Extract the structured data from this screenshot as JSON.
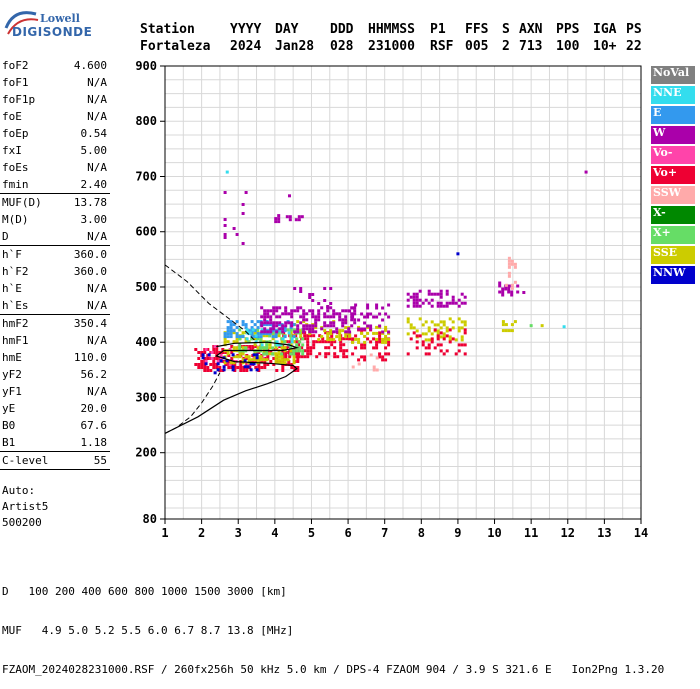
{
  "logo": {
    "line1": "Lowell",
    "line2": "DIGISONDE"
  },
  "header": {
    "row1": [
      "Station",
      "YYYY",
      "DAY",
      "DDD",
      "HHMMSS",
      "P1",
      "FFS",
      "S",
      "AXN",
      "PPS",
      "IGA",
      "PS"
    ],
    "row2": [
      "Fortaleza",
      "2024",
      "Jan28",
      "028",
      "231000",
      "RSF",
      "005",
      "2",
      "713",
      "100",
      "10+",
      "22"
    ]
  },
  "params": {
    "g1": [
      {
        "k": "foF2",
        "v": "4.600"
      },
      {
        "k": "foF1",
        "v": "N/A"
      },
      {
        "k": "foF1p",
        "v": "N/A"
      },
      {
        "k": "foE",
        "v": "N/A"
      },
      {
        "k": "foEp",
        "v": "0.54"
      },
      {
        "k": "fxI",
        "v": "5.00"
      },
      {
        "k": "foEs",
        "v": "N/A"
      },
      {
        "k": "fmin",
        "v": "2.40"
      }
    ],
    "g2": [
      {
        "k": "MUF(D)",
        "v": "13.78"
      },
      {
        "k": "M(D)",
        "v": "3.00"
      },
      {
        "k": "D",
        "v": "N/A"
      }
    ],
    "g3": [
      {
        "k": "h`F",
        "v": "360.0"
      },
      {
        "k": "h`F2",
        "v": "360.0"
      },
      {
        "k": "h`E",
        "v": "N/A"
      },
      {
        "k": "h`Es",
        "v": "N/A"
      }
    ],
    "g4": [
      {
        "k": "hmF2",
        "v": "350.4"
      },
      {
        "k": "hmF1",
        "v": "N/A"
      },
      {
        "k": "hmE",
        "v": "110.0"
      },
      {
        "k": "yF2",
        "v": "56.2"
      },
      {
        "k": "yF1",
        "v": "N/A"
      },
      {
        "k": "yE",
        "v": "20.0"
      },
      {
        "k": "B0",
        "v": "67.6"
      },
      {
        "k": "B1",
        "v": "1.18"
      }
    ],
    "g5": [
      {
        "k": "C-level",
        "v": "55"
      }
    ]
  },
  "auto": {
    "line1": "Auto:",
    "line2": "Artist5",
    "line3": "500200"
  },
  "legend": [
    {
      "label": "NoVal",
      "color": "#808080"
    },
    {
      "label": "NNE",
      "color": "#33ddee"
    },
    {
      "label": "E",
      "color": "#3399ee"
    },
    {
      "label": "W",
      "color": "#aa00aa"
    },
    {
      "label": "Vo-",
      "color": "#ff44aa"
    },
    {
      "label": "Vo+",
      "color": "#ee0033"
    },
    {
      "label": "SSW",
      "color": "#ffaaaa"
    },
    {
      "label": "X-",
      "color": "#008800"
    },
    {
      "label": "X+",
      "color": "#66dd66"
    },
    {
      "label": "SSE",
      "color": "#cccc00"
    },
    {
      "label": "NNW",
      "color": "#0000cc"
    }
  ],
  "footer": {
    "d_label": "D",
    "d_values": "100 200 400 600 800 1000 1500 3000 [km]",
    "muf_label": "MUF",
    "muf_values": "4.9 5.0 5.2 5.5 6.0 6.7 8.7 13.8 [MHz]",
    "file_line": "FZAOM_2024028231000.RSF / 260fx256h 50 kHz 5.0 km / DPS-4 FZAOM 904 / 3.9 S 321.6 E   Ion2Png 1.3.20"
  },
  "chart_data": {
    "type": "scatter",
    "xlim": [
      1,
      14
    ],
    "ylim": [
      80,
      900
    ],
    "x_ticks": [
      1,
      2,
      3,
      4,
      5,
      6,
      7,
      8,
      9,
      10,
      11,
      12,
      13,
      14
    ],
    "y_ticks": [
      80,
      200,
      300,
      400,
      500,
      600,
      700,
      800,
      900
    ],
    "grid": true,
    "clusters": [
      {
        "mode": "Vo+",
        "x": [
          1.8,
          4.6
        ],
        "y": [
          350,
          395
        ],
        "density": 0.55
      },
      {
        "mode": "Vo+",
        "x": [
          4.2,
          6.0
        ],
        "y": [
          375,
          420
        ],
        "density": 0.45
      },
      {
        "mode": "Vo-",
        "x": [
          2.0,
          3.8
        ],
        "y": [
          360,
          395
        ],
        "density": 0.2
      },
      {
        "mode": "SSE",
        "x": [
          2.6,
          4.5
        ],
        "y": [
          365,
          420
        ],
        "density": 0.45
      },
      {
        "mode": "SSE",
        "x": [
          4.5,
          6.0
        ],
        "y": [
          405,
          440
        ],
        "density": 0.35
      },
      {
        "mode": "X+",
        "x": [
          3.0,
          4.8
        ],
        "y": [
          380,
          425
        ],
        "density": 0.3
      },
      {
        "mode": "E",
        "x": [
          2.6,
          4.5
        ],
        "y": [
          410,
          440
        ],
        "density": 0.5
      },
      {
        "mode": "NNE",
        "x": [
          3.2,
          4.5
        ],
        "y": [
          395,
          425
        ],
        "density": 0.25
      },
      {
        "mode": "W",
        "x": [
          3.6,
          6.2
        ],
        "y": [
          420,
          465
        ],
        "density": 0.45
      },
      {
        "mode": "W",
        "x": [
          4.5,
          5.6
        ],
        "y": [
          465,
          500
        ],
        "density": 0.2
      },
      {
        "mode": "NNW",
        "x": [
          2.0,
          3.5
        ],
        "y": [
          345,
          380
        ],
        "density": 0.15
      },
      {
        "mode": "Vo+",
        "x": [
          6.0,
          7.1
        ],
        "y": [
          370,
          425
        ],
        "density": 0.3
      },
      {
        "mode": "SSE",
        "x": [
          6.0,
          7.1
        ],
        "y": [
          400,
          435
        ],
        "density": 0.25
      },
      {
        "mode": "W",
        "x": [
          6.0,
          7.1
        ],
        "y": [
          420,
          470
        ],
        "density": 0.25
      },
      {
        "mode": "SSW",
        "x": [
          6.1,
          6.8
        ],
        "y": [
          350,
          385
        ],
        "density": 0.2
      },
      {
        "mode": "W",
        "x": [
          7.6,
          9.2
        ],
        "y": [
          465,
          495
        ],
        "density": 0.45
      },
      {
        "mode": "SSE",
        "x": [
          7.6,
          9.2
        ],
        "y": [
          405,
          445
        ],
        "density": 0.35
      },
      {
        "mode": "Vo+",
        "x": [
          7.6,
          9.2
        ],
        "y": [
          380,
          425
        ],
        "density": 0.25
      },
      {
        "mode": "W",
        "x": [
          10.1,
          10.6
        ],
        "y": [
          485,
          510
        ],
        "density": 0.45
      },
      {
        "mode": "SSW",
        "x": [
          10.2,
          10.6
        ],
        "y": [
          500,
          560
        ],
        "density": 0.3
      },
      {
        "mode": "SSE",
        "x": [
          10.2,
          10.6
        ],
        "y": [
          420,
          440
        ],
        "density": 0.3
      },
      {
        "mode": "W",
        "x": [
          2.6,
          3.2
        ],
        "y": [
          580,
          690
        ],
        "density": 0.08
      },
      {
        "mode": "W",
        "x": [
          3.9,
          4.1
        ],
        "y": [
          618,
          632
        ],
        "density": 0.6
      },
      {
        "mode": "W",
        "x": [
          4.3,
          4.8
        ],
        "y": [
          620,
          630
        ],
        "density": 0.4
      }
    ],
    "points": [
      {
        "mode": "NNE",
        "x": 2.7,
        "y": 708
      },
      {
        "mode": "W",
        "x": 12.5,
        "y": 708
      },
      {
        "mode": "W",
        "x": 4.4,
        "y": 665
      },
      {
        "mode": "X+",
        "x": 11.0,
        "y": 430
      },
      {
        "mode": "SSE",
        "x": 11.3,
        "y": 430
      },
      {
        "mode": "NNE",
        "x": 11.9,
        "y": 428
      },
      {
        "mode": "NNW",
        "x": 9.0,
        "y": 560
      },
      {
        "mode": "W",
        "x": 10.8,
        "y": 490
      }
    ],
    "profile_solid": [
      [
        1,
        235
      ],
      [
        1.9,
        265
      ],
      [
        2.6,
        295
      ],
      [
        3.2,
        312
      ],
      [
        3.8,
        325
      ],
      [
        4.3,
        338
      ],
      [
        4.6,
        352
      ],
      [
        4.5,
        358
      ],
      [
        3.8,
        362
      ],
      [
        2.9,
        365
      ],
      [
        2.4,
        375
      ],
      [
        2.6,
        385
      ],
      [
        3.5,
        385
      ],
      [
        4.2,
        385
      ],
      [
        4.6,
        390
      ],
      [
        4.4,
        395
      ],
      [
        3.8,
        400
      ],
      [
        2.9,
        398
      ],
      [
        2.4,
        392
      ]
    ],
    "profile_dashed_upper": [
      [
        1,
        540
      ],
      [
        1.6,
        510
      ],
      [
        2.2,
        470
      ],
      [
        2.8,
        440
      ],
      [
        3.2,
        420
      ],
      [
        3.5,
        400
      ]
    ],
    "profile_dashed_lower": [
      [
        1,
        235
      ],
      [
        1.3,
        245
      ],
      [
        1.7,
        265
      ],
      [
        2.0,
        290
      ],
      [
        2.3,
        320
      ],
      [
        2.5,
        345
      ]
    ]
  }
}
